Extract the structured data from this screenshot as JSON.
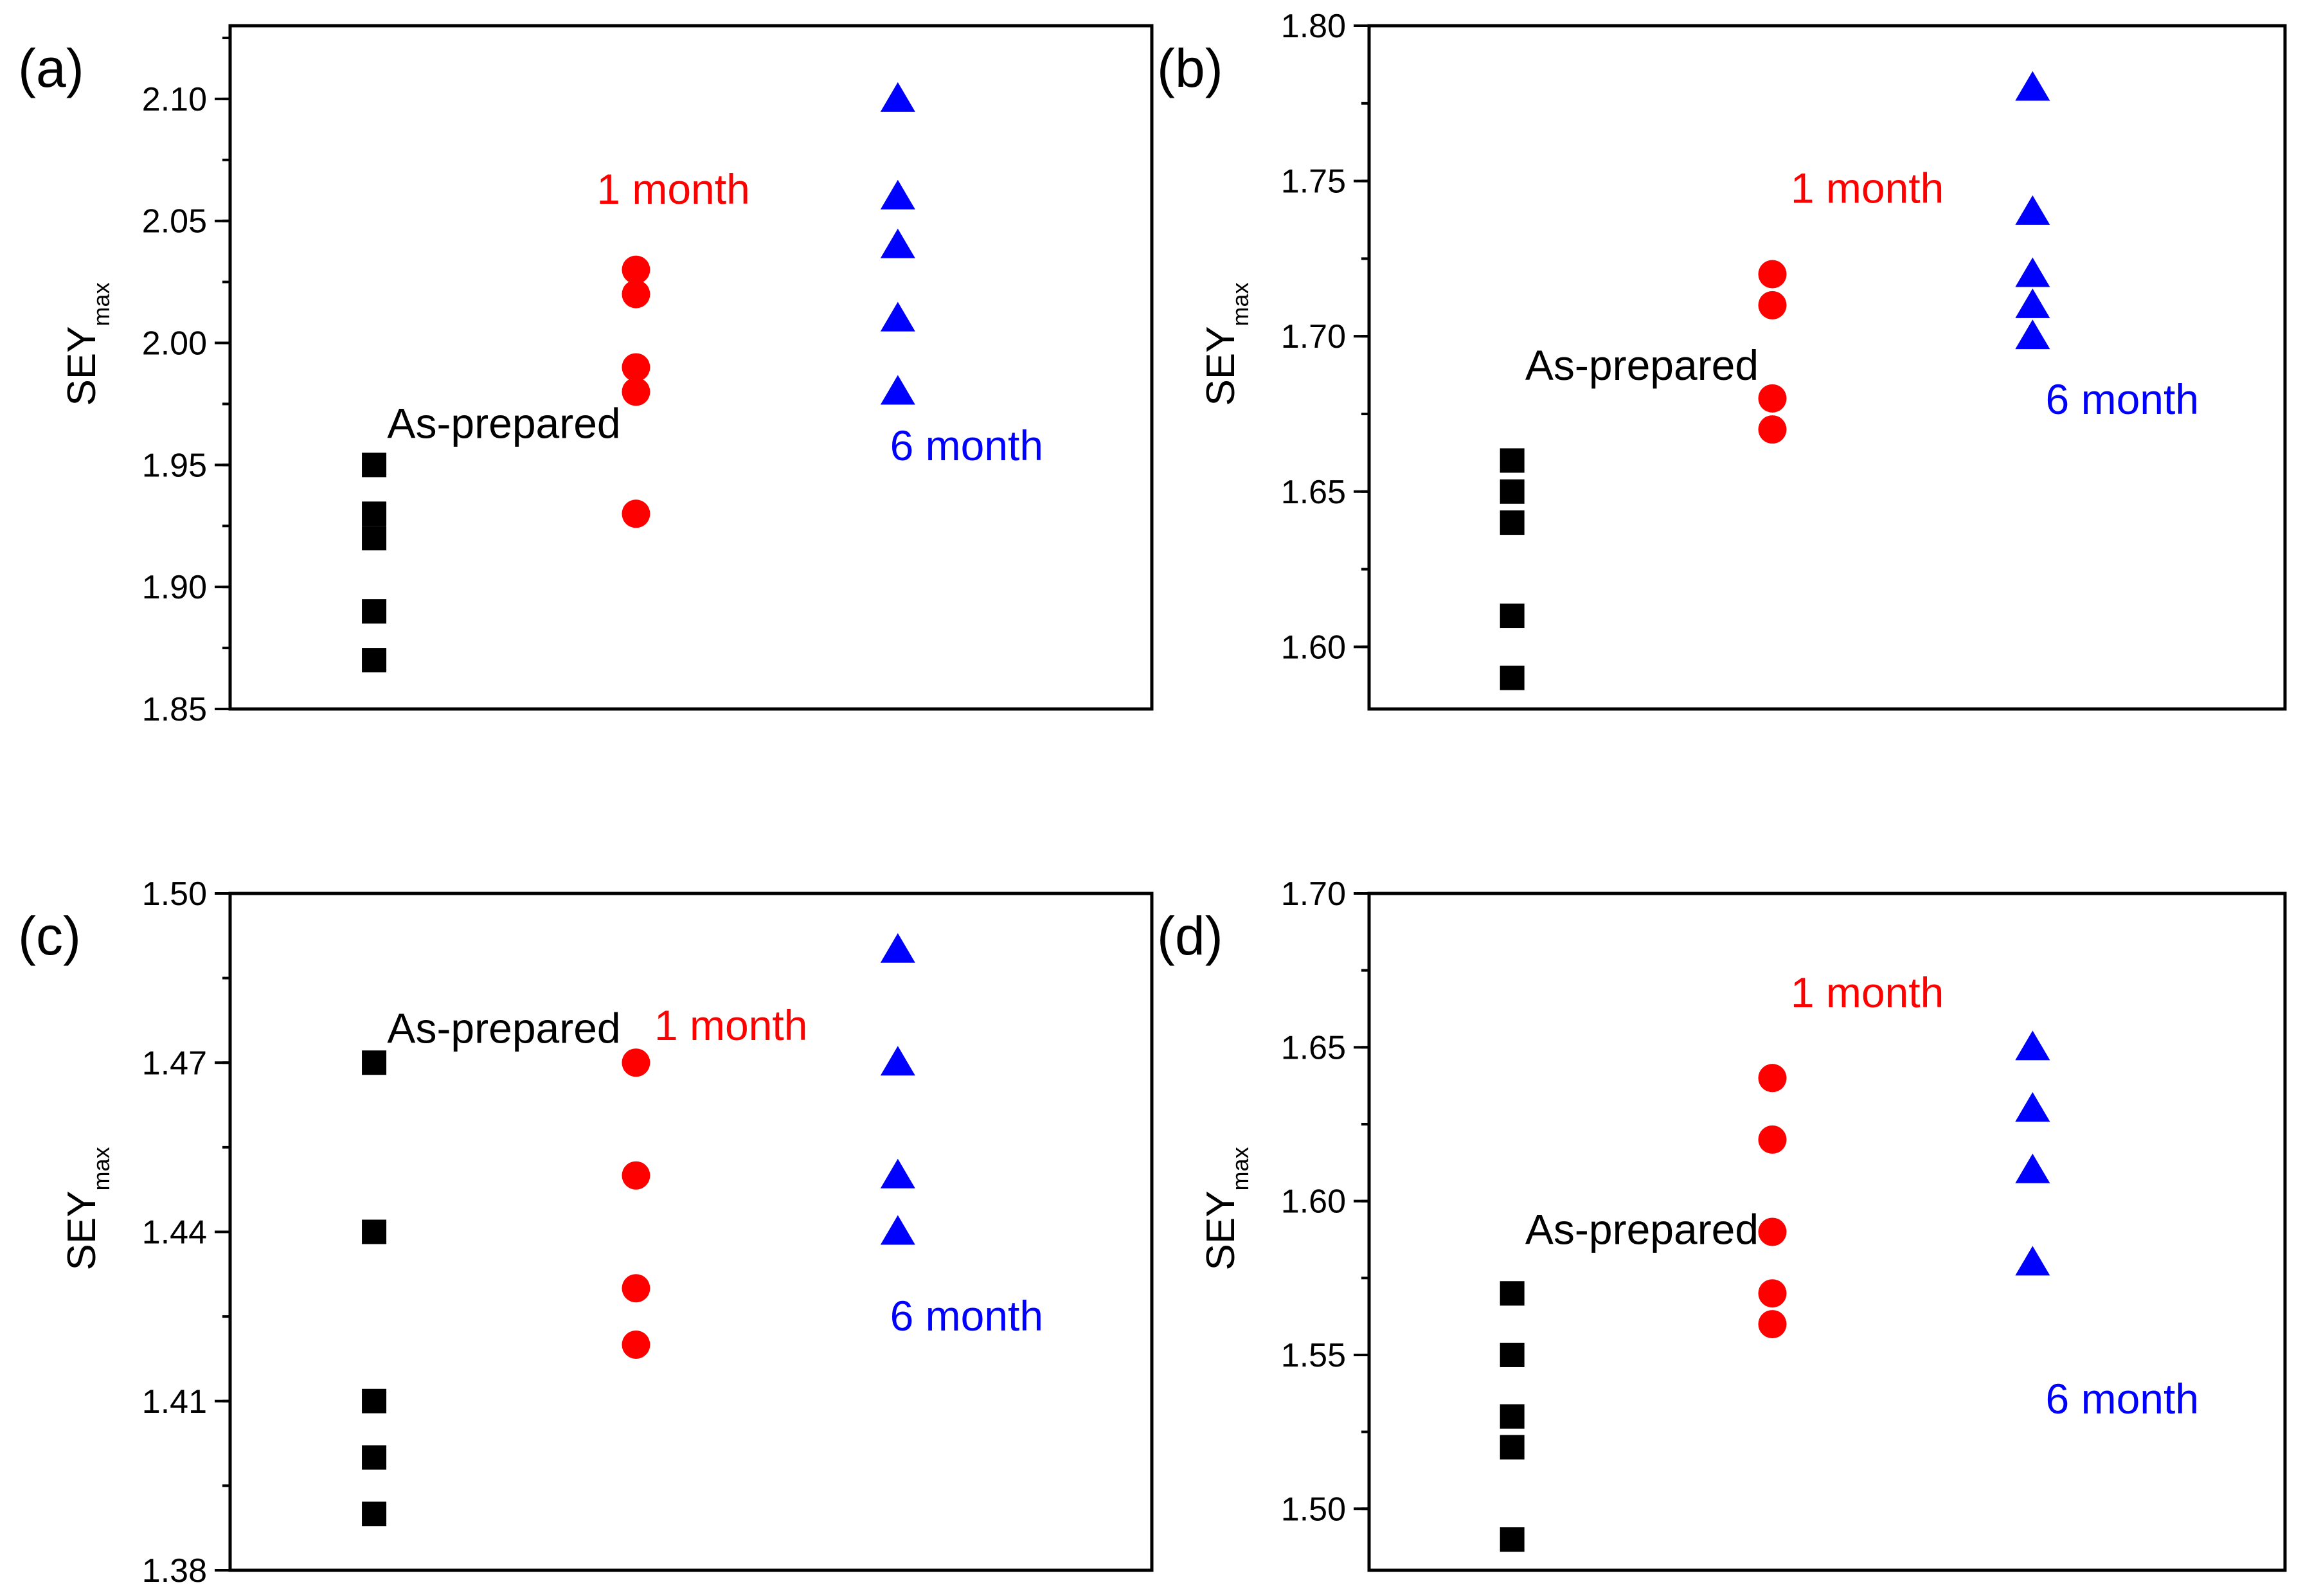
{
  "colors": {
    "as_prepared": "#000000",
    "one_month": "#ff0000",
    "six_month": "#0000ff"
  },
  "ylabel": {
    "main": "SEY",
    "sub": "max"
  },
  "chart_data": [
    {
      "type": "scatter",
      "panel": "(a)",
      "ylabel": "SEYmax",
      "ylim": [
        1.85,
        2.13
      ],
      "yticks": [
        "1.85",
        "1.90",
        "1.95",
        "2.00",
        "2.05",
        "2.10"
      ],
      "minor_step": 0.025,
      "series": [
        {
          "name": "As-prepared",
          "marker": "square",
          "color": "#000000",
          "x": 1,
          "values": [
            1.95,
            1.93,
            1.92,
            1.89,
            1.87
          ]
        },
        {
          "name": "1 month",
          "marker": "circle",
          "color": "#ff0000",
          "x": 2,
          "values": [
            2.03,
            2.02,
            1.99,
            1.98,
            1.93
          ]
        },
        {
          "name": "6 month",
          "marker": "triangle",
          "color": "#0000ff",
          "x": 3,
          "values": [
            2.1,
            2.06,
            2.04,
            2.01,
            1.98
          ]
        }
      ],
      "annotations": [
        {
          "text": "As-prepared",
          "color": "#000000",
          "x": 1.05,
          "y": 1.961
        },
        {
          "text": "1 month",
          "color": "#ff0000",
          "x": 1.85,
          "y": 2.057
        },
        {
          "text": "6 month",
          "color": "#0000ff",
          "x": 2.97,
          "y": 1.952
        }
      ]
    },
    {
      "type": "scatter",
      "panel": "(b)",
      "ylabel": "SEYmax",
      "ylim": [
        1.58,
        1.8
      ],
      "yticks": [
        "1.60",
        "1.65",
        "1.70",
        "1.75",
        "1.80"
      ],
      "minor_step": 0.025,
      "series": [
        {
          "name": "As-prepared",
          "marker": "square",
          "color": "#000000",
          "x": 1,
          "values": [
            1.66,
            1.65,
            1.64,
            1.61,
            1.59
          ]
        },
        {
          "name": "1 month",
          "marker": "circle",
          "color": "#ff0000",
          "x": 2,
          "values": [
            1.72,
            1.71,
            1.68,
            1.67
          ]
        },
        {
          "name": "6 month",
          "marker": "triangle",
          "color": "#0000ff",
          "x": 3,
          "values": [
            1.78,
            1.74,
            1.72,
            1.71,
            1.7
          ]
        }
      ],
      "annotations": [
        {
          "text": "As-prepared",
          "color": "#000000",
          "x": 1.05,
          "y": 1.686
        },
        {
          "text": "1 month",
          "color": "#ff0000",
          "x": 2.07,
          "y": 1.743
        },
        {
          "text": "6 month",
          "color": "#0000ff",
          "x": 3.05,
          "y": 1.675
        }
      ]
    },
    {
      "type": "scatter",
      "panel": "(c)",
      "ylabel": "SEYmax",
      "ylim": [
        1.38,
        1.5
      ],
      "yticks": [
        "1.38",
        "1.41",
        "1.44",
        "1.47",
        "1.50"
      ],
      "minor_step": 0.015,
      "series": [
        {
          "name": "As-prepared",
          "marker": "square",
          "color": "#000000",
          "x": 1,
          "values": [
            1.47,
            1.44,
            1.41,
            1.4,
            1.39
          ]
        },
        {
          "name": "1 month",
          "marker": "circle",
          "color": "#ff0000",
          "x": 2,
          "values": [
            1.47,
            1.45,
            1.43,
            1.42
          ]
        },
        {
          "name": "6 month",
          "marker": "triangle",
          "color": "#0000ff",
          "x": 3,
          "values": [
            1.49,
            1.47,
            1.45,
            1.44
          ]
        }
      ],
      "annotations": [
        {
          "text": "As-prepared",
          "color": "#000000",
          "x": 1.05,
          "y": 1.4735
        },
        {
          "text": "1 month",
          "color": "#ff0000",
          "x": 2.07,
          "y": 1.474
        },
        {
          "text": "6 month",
          "color": "#0000ff",
          "x": 2.97,
          "y": 1.4225
        }
      ]
    },
    {
      "type": "scatter",
      "panel": "(d)",
      "ylabel": "SEYmax",
      "ylim": [
        1.48,
        1.7
      ],
      "yticks": [
        "1.50",
        "1.55",
        "1.60",
        "1.65",
        "1.70"
      ],
      "minor_step": 0.025,
      "series": [
        {
          "name": "As-prepared",
          "marker": "square",
          "color": "#000000",
          "x": 1,
          "values": [
            1.57,
            1.55,
            1.53,
            1.52,
            1.49
          ]
        },
        {
          "name": "1 month",
          "marker": "circle",
          "color": "#ff0000",
          "x": 2,
          "values": [
            1.64,
            1.62,
            1.59,
            1.57,
            1.56
          ]
        },
        {
          "name": "6 month",
          "marker": "triangle",
          "color": "#0000ff",
          "x": 3,
          "values": [
            1.65,
            1.63,
            1.61,
            1.58
          ]
        }
      ],
      "annotations": [
        {
          "text": "As-prepared",
          "color": "#000000",
          "x": 1.05,
          "y": 1.586
        },
        {
          "text": "1 month",
          "color": "#ff0000",
          "x": 2.07,
          "y": 1.663
        },
        {
          "text": "6 month",
          "color": "#0000ff",
          "x": 3.05,
          "y": 1.531
        }
      ]
    }
  ]
}
